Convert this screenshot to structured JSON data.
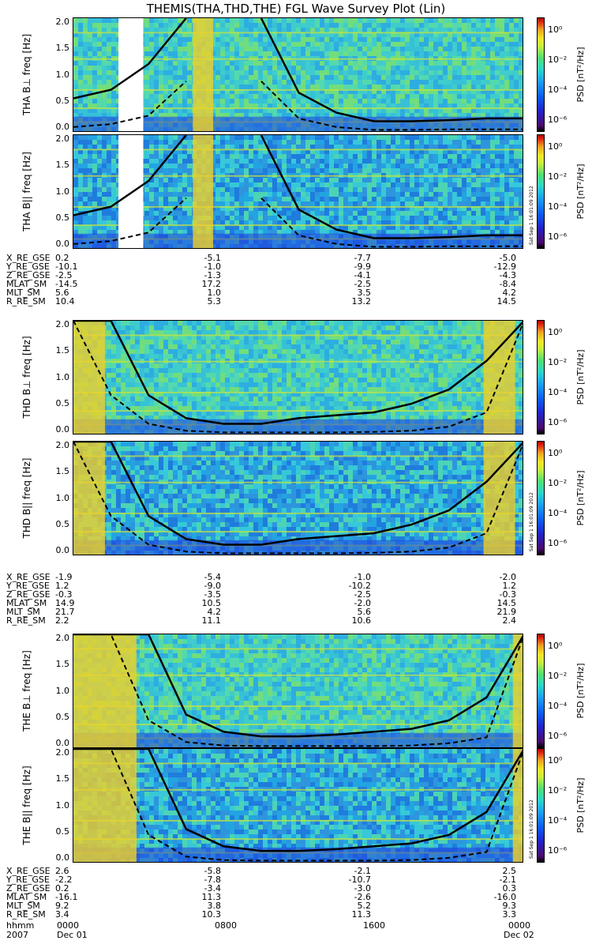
{
  "title": "THEMIS(THA,THD,THE) FGL Wave Survey Plot (Lin)",
  "colorbar": {
    "label": "PSD [nT²/Hz]",
    "ticks": [
      "10⁰",
      "10⁻²",
      "10⁻⁴",
      "10⁻⁶"
    ],
    "stamp": "Sat Sep 1 16:01:09 2012"
  },
  "y_axis": {
    "label": "freq [Hz]",
    "ticks": [
      "2.0",
      "1.5",
      "1.0",
      "0.5",
      "0.0"
    ]
  },
  "chart_data": [
    {
      "type": "heatmap",
      "title": "THA B⊥",
      "ylabel": "freq [Hz]",
      "ylim": [
        0,
        2
      ],
      "colorbar": "PSD [nT²/Hz]",
      "x": [
        "0000",
        "0800",
        "1600",
        "0000"
      ],
      "solid": [
        0.6,
        0.75,
        1.2,
        2.0,
        null,
        2.0,
        0.7,
        0.35,
        0.2,
        0.2,
        0.22,
        0.25,
        0.25
      ],
      "dashed": [
        0.1,
        0.15,
        0.3,
        0.9,
        null,
        0.9,
        0.25,
        0.1,
        0.05,
        0.05,
        0.06,
        0.06,
        0.06
      ],
      "data_gap": [
        0.1,
        0.155
      ]
    },
    {
      "type": "heatmap",
      "title": "THA B||",
      "ylabel": "freq [Hz]",
      "ylim": [
        0,
        2
      ],
      "colorbar": "PSD [nT²/Hz]",
      "x": [
        "0000",
        "0800",
        "1600",
        "0000"
      ],
      "solid": [
        0.6,
        0.75,
        1.2,
        2.0,
        null,
        2.0,
        0.7,
        0.35,
        0.2,
        0.2,
        0.22,
        0.25,
        0.25
      ],
      "dashed": [
        0.1,
        0.15,
        0.3,
        0.9,
        null,
        0.9,
        0.25,
        0.1,
        0.05,
        0.05,
        0.06,
        0.06,
        0.06
      ],
      "data_gap": [
        0.1,
        0.155
      ]
    },
    {
      "type": "heatmap",
      "title": "THD B⊥",
      "ylabel": "freq [Hz]",
      "ylim": [
        0,
        2
      ],
      "colorbar": "PSD [nT²/Hz]",
      "x": [
        "0000",
        "0800",
        "1600",
        "0000"
      ],
      "solid": [
        2.0,
        2.0,
        0.7,
        0.3,
        0.2,
        0.2,
        0.3,
        0.35,
        0.4,
        0.55,
        0.8,
        1.3,
        2.0
      ],
      "dashed": [
        2.0,
        0.7,
        0.2,
        0.08,
        0.05,
        0.05,
        0.05,
        0.05,
        0.06,
        0.08,
        0.15,
        0.4,
        2.0
      ]
    },
    {
      "type": "heatmap",
      "title": "THD B||",
      "ylabel": "freq [Hz]",
      "ylim": [
        0,
        2
      ],
      "colorbar": "PSD [nT²/Hz]",
      "x": [
        "0000",
        "0800",
        "1600",
        "0000"
      ],
      "solid": [
        2.0,
        2.0,
        0.7,
        0.3,
        0.2,
        0.2,
        0.3,
        0.35,
        0.4,
        0.55,
        0.8,
        1.3,
        2.0
      ],
      "dashed": [
        2.0,
        0.7,
        0.2,
        0.08,
        0.05,
        0.05,
        0.05,
        0.05,
        0.06,
        0.08,
        0.15,
        0.4,
        2.0
      ]
    },
    {
      "type": "heatmap",
      "title": "THE B⊥",
      "ylabel": "freq [Hz]",
      "ylim": [
        0,
        2
      ],
      "colorbar": "PSD [nT²/Hz]",
      "x": [
        "0000",
        "0800",
        "1600",
        "0000"
      ],
      "solid": [
        2.0,
        2.0,
        2.0,
        0.6,
        0.3,
        0.22,
        0.22,
        0.25,
        0.3,
        0.35,
        0.5,
        0.9,
        2.0
      ],
      "dashed": [
        2.0,
        2.0,
        0.5,
        0.12,
        0.06,
        0.05,
        0.05,
        0.05,
        0.05,
        0.06,
        0.1,
        0.2,
        2.0
      ]
    },
    {
      "type": "heatmap",
      "title": "THE B||",
      "ylabel": "freq [Hz]",
      "ylim": [
        0,
        2
      ],
      "colorbar": "PSD [nT²/Hz]",
      "x": [
        "0000",
        "0800",
        "1600",
        "0000"
      ],
      "solid": [
        2.0,
        2.0,
        2.0,
        0.6,
        0.3,
        0.22,
        0.22,
        0.25,
        0.3,
        0.35,
        0.5,
        0.9,
        2.0
      ],
      "dashed": [
        2.0,
        2.0,
        0.5,
        0.12,
        0.06,
        0.05,
        0.05,
        0.05,
        0.05,
        0.06,
        0.1,
        0.2,
        2.0
      ]
    }
  ],
  "orbit_tables": [
    {
      "rows": [
        {
          "label": "X_RE_GSE",
          "values": [
            "0.2",
            "-5.1",
            "-7.7",
            "-5.0"
          ]
        },
        {
          "label": "Y_RE_GSE",
          "values": [
            "-10.1",
            "-1.0",
            "-9.9",
            "-12.9"
          ]
        },
        {
          "label": "Z_RE_GSE",
          "values": [
            "-2.5",
            "-1.3",
            "-4.1",
            "-4.3"
          ]
        },
        {
          "label": "MLAT_SM",
          "values": [
            "-14.5",
            "17.2",
            "-2.5",
            "-8.4"
          ]
        },
        {
          "label": "MLT_SM",
          "values": [
            "5.6",
            "1.0",
            "3.5",
            "4.2"
          ]
        },
        {
          "label": "R_RE_SM",
          "values": [
            "10.4",
            "5.3",
            "13.2",
            "14.5"
          ]
        }
      ]
    },
    {
      "rows": [
        {
          "label": "X_RE_GSE",
          "values": [
            "-1.9",
            "-5.4",
            "-1.0",
            "-2.0"
          ]
        },
        {
          "label": "Y_RE_GSE",
          "values": [
            "1.2",
            "-9.0",
            "-10.2",
            "1.2"
          ]
        },
        {
          "label": "Z_RE_GSE",
          "values": [
            "-0.3",
            "-3.5",
            "-2.5",
            "-0.3"
          ]
        },
        {
          "label": "MLAT_SM",
          "values": [
            "14.9",
            "10.5",
            "-2.0",
            "14.5"
          ]
        },
        {
          "label": "MLT_SM",
          "values": [
            "21.7",
            "4.2",
            "5.6",
            "21.9"
          ]
        },
        {
          "label": "R_RE_SM",
          "values": [
            "2.2",
            "11.1",
            "10.6",
            "2.4"
          ]
        }
      ]
    },
    {
      "rows": [
        {
          "label": "X_RE_GSE",
          "values": [
            "2.6",
            "-5.8",
            "-2.1",
            "2.5"
          ]
        },
        {
          "label": "Y_RE_GSE",
          "values": [
            "-2.2",
            "-7.8",
            "-10.7",
            "-2.1"
          ]
        },
        {
          "label": "Z_RE_GSE",
          "values": [
            "0.2",
            "-3.4",
            "-3.0",
            "0.3"
          ]
        },
        {
          "label": "MLAT_SM",
          "values": [
            "-16.1",
            "11.3",
            "-2.6",
            "-16.0"
          ]
        },
        {
          "label": "MLT_SM",
          "values": [
            "9.2",
            "3.8",
            "5.2",
            "9.3"
          ]
        },
        {
          "label": "R_RE_SM",
          "values": [
            "3.4",
            "10.3",
            "11.3",
            "3.3"
          ]
        }
      ]
    }
  ],
  "footer": {
    "hhmm_label": "hhmm",
    "times": [
      "0000",
      "0800",
      "1600",
      "0000"
    ],
    "year": "2007",
    "start_date": "Dec 01",
    "end_date": "Dec 02"
  }
}
